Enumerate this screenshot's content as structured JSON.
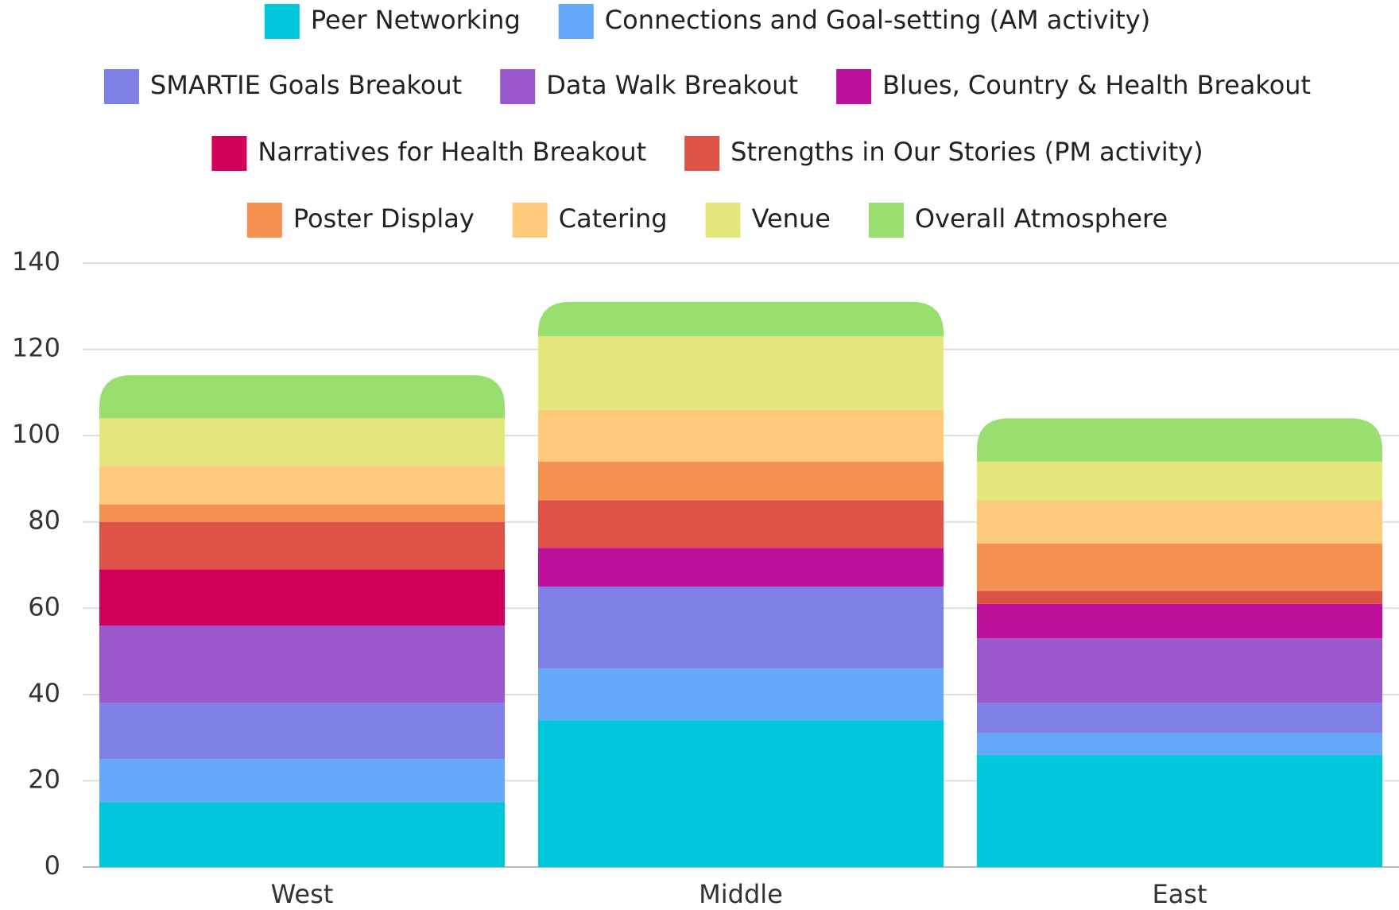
{
  "chart_data": {
    "type": "stacked_bar",
    "categories": [
      "West",
      "Middle",
      "East"
    ],
    "series": [
      {
        "name": "Peer Networking",
        "color": "#00c8dc",
        "values": [
          15,
          34,
          26
        ]
      },
      {
        "name": "Connections and Goal-setting (AM activity)",
        "color": "#64a8fa",
        "values": [
          10,
          12,
          5
        ]
      },
      {
        "name": "SMARTIE Goals Breakout",
        "color": "#7f80e6",
        "values": [
          13,
          19,
          7
        ]
      },
      {
        "name": "Data Walk Breakout",
        "color": "#9a58cc",
        "values": [
          18,
          0,
          15
        ]
      },
      {
        "name": "Blues, Country & Health Breakout",
        "color": "#bd119c",
        "values": [
          0,
          9,
          8
        ]
      },
      {
        "name": "Narratives for Health Breakout",
        "color": "#d0005a",
        "values": [
          13,
          0,
          0
        ]
      },
      {
        "name": "Strengths in Our Stories (PM activity)",
        "color": "#df5248",
        "values": [
          11,
          11,
          3
        ]
      },
      {
        "name": "Poster Display",
        "color": "#f49150",
        "values": [
          4,
          9,
          11
        ]
      },
      {
        "name": "Catering",
        "color": "#fdc97a",
        "values": [
          9,
          12,
          10
        ]
      },
      {
        "name": "Venue",
        "color": "#e5e77d",
        "values": [
          11,
          17,
          9
        ]
      },
      {
        "name": "Overall Atmosphere",
        "color": "#99df70",
        "values": [
          10,
          8,
          10
        ]
      }
    ],
    "ylim": [
      0,
      140
    ],
    "yticks": [
      0,
      20,
      40,
      60,
      80,
      100,
      120,
      140
    ],
    "grid": true,
    "legend": "top"
  }
}
